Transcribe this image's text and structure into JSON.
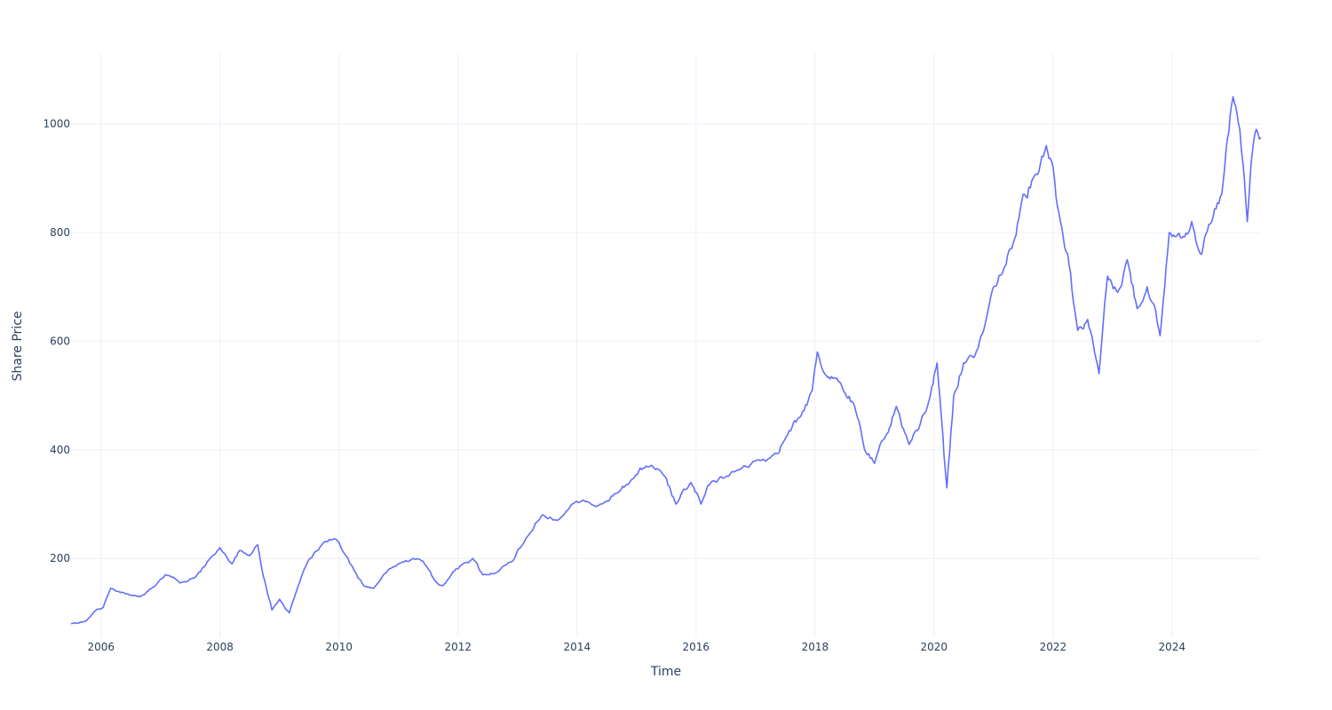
{
  "chart_data": {
    "type": "line",
    "xlabel": "Time",
    "ylabel": "Share Price",
    "xlim": [
      "2005-07-01",
      "2025-06-30"
    ],
    "ylim": [
      55,
      1130
    ],
    "x_ticks": [
      2006,
      2008,
      2010,
      2012,
      2014,
      2016,
      2018,
      2020,
      2022,
      2024
    ],
    "y_ticks": [
      200,
      400,
      600,
      800,
      1000
    ],
    "grid": true,
    "colors": {
      "line": "#636efa",
      "grid": "#ebf0f8",
      "text": "#2a3f5f"
    },
    "series": [
      {
        "x": [
          "2005-07-01",
          "2005-10-01",
          "2005-12-01",
          "2006-01-15",
          "2006-03-01",
          "2006-06-01",
          "2006-09-01",
          "2006-12-01",
          "2007-02-01",
          "2007-05-01",
          "2007-08-01",
          "2007-11-01",
          "2008-01-01",
          "2008-03-15",
          "2008-05-01",
          "2008-07-01",
          "2008-08-20",
          "2008-10-01",
          "2008-11-15",
          "2009-01-01",
          "2009-03-01",
          "2009-04-15",
          "2009-06-01",
          "2009-08-01",
          "2009-10-01",
          "2009-12-15",
          "2010-02-01",
          "2010-04-01",
          "2010-06-01",
          "2010-08-01",
          "2010-10-01",
          "2011-01-01",
          "2011-04-01",
          "2011-06-01",
          "2011-08-10",
          "2011-10-01",
          "2011-12-01",
          "2012-02-01",
          "2012-04-01",
          "2012-06-01",
          "2012-09-01",
          "2012-12-01",
          "2013-03-01",
          "2013-06-01",
          "2013-09-01",
          "2013-12-01",
          "2014-03-01",
          "2014-06-01",
          "2014-09-01",
          "2014-12-01",
          "2015-03-01",
          "2015-06-01",
          "2015-09-01",
          "2015-12-01",
          "2016-02-01",
          "2016-04-01",
          "2016-07-01",
          "2016-10-01",
          "2017-01-01",
          "2017-04-01",
          "2017-07-01",
          "2017-10-01",
          "2017-12-15",
          "2018-01-15",
          "2018-03-01",
          "2018-06-01",
          "2018-09-01",
          "2018-11-01",
          "2019-01-01",
          "2019-03-01",
          "2019-05-15",
          "2019-08-01",
          "2019-10-01",
          "2019-12-01",
          "2020-01-20",
          "2020-03-20",
          "2020-05-01",
          "2020-07-01",
          "2020-09-01",
          "2020-11-01",
          "2021-01-01",
          "2021-03-01",
          "2021-05-01",
          "2021-07-01",
          "2021-09-01",
          "2021-11-20",
          "2022-01-01",
          "2022-02-15",
          "2022-04-01",
          "2022-06-01",
          "2022-08-01",
          "2022-10-10",
          "2022-12-01",
          "2023-02-01",
          "2023-04-01",
          "2023-06-01",
          "2023-08-01",
          "2023-10-20",
          "2023-12-15",
          "2024-03-01",
          "2024-05-01",
          "2024-07-01",
          "2024-09-01",
          "2024-11-01",
          "2025-01-10",
          "2025-02-20",
          "2025-04-07",
          "2025-05-01",
          "2025-06-01",
          "2025-06-30"
        ],
        "y": [
          80,
          85,
          105,
          110,
          145,
          135,
          130,
          150,
          170,
          155,
          165,
          200,
          220,
          190,
          215,
          205,
          225,
          160,
          105,
          125,
          100,
          140,
          180,
          210,
          230,
          235,
          210,
          180,
          150,
          145,
          170,
          190,
          200,
          195,
          160,
          150,
          175,
          190,
          200,
          170,
          175,
          195,
          240,
          280,
          270,
          300,
          305,
          300,
          320,
          345,
          370,
          360,
          300,
          340,
          300,
          340,
          350,
          365,
          380,
          385,
          420,
          460,
          510,
          580,
          540,
          525,
          480,
          400,
          375,
          420,
          480,
          410,
          440,
          490,
          560,
          330,
          500,
          560,
          570,
          620,
          700,
          730,
          780,
          870,
          900,
          960,
          920,
          820,
          760,
          620,
          640,
          540,
          720,
          690,
          750,
          660,
          700,
          610,
          800,
          790,
          820,
          760,
          820,
          870,
          1050,
          990,
          820,
          930,
          990,
          975
        ]
      }
    ]
  }
}
